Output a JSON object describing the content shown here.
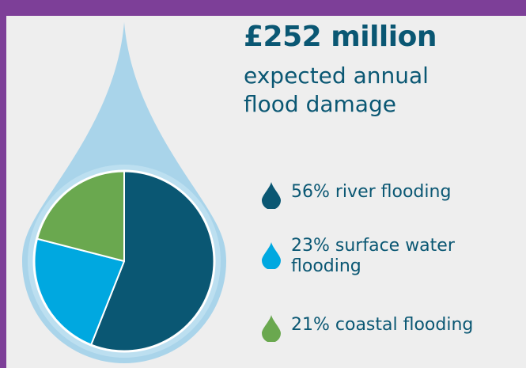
{
  "headline": {
    "amount": "£252 million",
    "line1": "expected annual",
    "line2": "flood damage"
  },
  "colors": {
    "frame": "#7d3f98",
    "panel": "#eeeeee",
    "drop": "#a9d4ea",
    "drop_inner": "#bcdff0",
    "river": "#0a5773",
    "surface": "#00a8e0",
    "coastal": "#6aa84f",
    "text": "#0a5773"
  },
  "chart_data": {
    "type": "pie",
    "unit": "%",
    "slices": [
      {
        "label": "river flooding",
        "value": 56,
        "color": "#0a5773"
      },
      {
        "label": "surface water flooding",
        "value": 23,
        "color": "#00a8e0"
      },
      {
        "label": "coastal flooding",
        "value": 21,
        "color": "#6aa84f"
      }
    ]
  },
  "legend": [
    {
      "text": "56% river flooding",
      "lines": [
        "56% river flooding"
      ],
      "icon": "drop-icon",
      "color": "#0a5773"
    },
    {
      "text": "23% surface water flooding",
      "lines": [
        "23% surface water",
        "flooding"
      ],
      "icon": "drop-icon",
      "color": "#00a8e0"
    },
    {
      "text": "21% coastal flooding",
      "lines": [
        "21% coastal flooding"
      ],
      "icon": "drop-icon",
      "color": "#6aa84f"
    }
  ]
}
